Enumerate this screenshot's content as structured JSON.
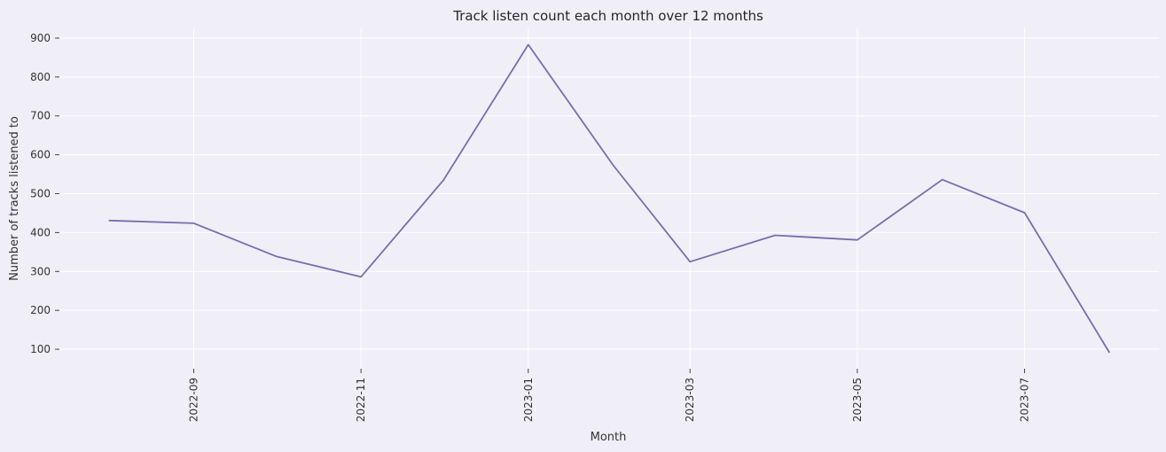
{
  "chart_data": {
    "type": "line",
    "title": "Track listen count each month over 12 months",
    "xlabel": "Month",
    "ylabel": "Number of tracks listened to",
    "x": [
      "2022-08-01",
      "2022-09-01",
      "2022-10-01",
      "2022-11-01",
      "2022-12-01",
      "2023-01-01",
      "2023-02-01",
      "2023-03-01",
      "2023-04-01",
      "2023-05-01",
      "2023-06-01",
      "2023-07-01",
      "2023-08-01"
    ],
    "series": [
      {
        "values": [
          431,
          424,
          339,
          286,
          534,
          883,
          573,
          325,
          393,
          381,
          536,
          451,
          91
        ]
      }
    ],
    "xticks": [
      "2022-09",
      "2022-11",
      "2023-01",
      "2023-03",
      "2023-05",
      "2023-07"
    ],
    "yticks": [
      100,
      200,
      300,
      400,
      500,
      600,
      700,
      800,
      900
    ],
    "ylim": [
      50,
      925
    ],
    "xlim": [
      "2022-07-14",
      "2023-08-19"
    ],
    "grid": true,
    "colors": {
      "line": "#7a6cad",
      "background": "#f0eff8",
      "grid": "#ffffff"
    }
  }
}
